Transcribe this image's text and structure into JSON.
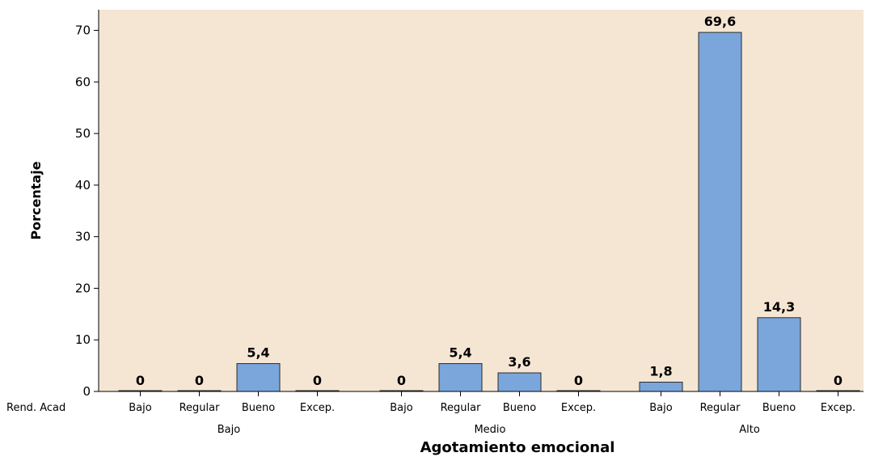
{
  "chart_data": {
    "type": "bar",
    "title": "",
    "ylabel": "Porcentaje",
    "xlabel": "Agotamiento emocional",
    "row_header": "Rend. Acad",
    "ylim": [
      0,
      74
    ],
    "yticks": [
      0,
      10,
      20,
      30,
      40,
      50,
      60,
      70
    ],
    "groups": [
      {
        "name": "Bajo",
        "categories": [
          "Bajo",
          "Regular",
          "Bueno",
          "Excep."
        ],
        "values": [
          0,
          0,
          5.4,
          0
        ],
        "labels": [
          "0",
          "0",
          "5,4",
          "0"
        ]
      },
      {
        "name": "Medio",
        "categories": [
          "Bajo",
          "Regular",
          "Bueno",
          "Excep."
        ],
        "values": [
          0,
          5.4,
          3.6,
          0
        ],
        "labels": [
          "0",
          "5,4",
          "3,6",
          "0"
        ]
      },
      {
        "name": "Alto",
        "categories": [
          "Bajo",
          "Regular",
          "Bueno",
          "Excep."
        ],
        "values": [
          1.8,
          69.6,
          14.3,
          0
        ],
        "labels": [
          "1,8",
          "69,6",
          "14,3",
          "0"
        ]
      }
    ],
    "grid": false,
    "colors": {
      "plot_background": "#f5e6d3",
      "bar_fill": "#7ba6dc",
      "bar_stroke": "#2a2a2a",
      "axis": "#000000"
    }
  }
}
